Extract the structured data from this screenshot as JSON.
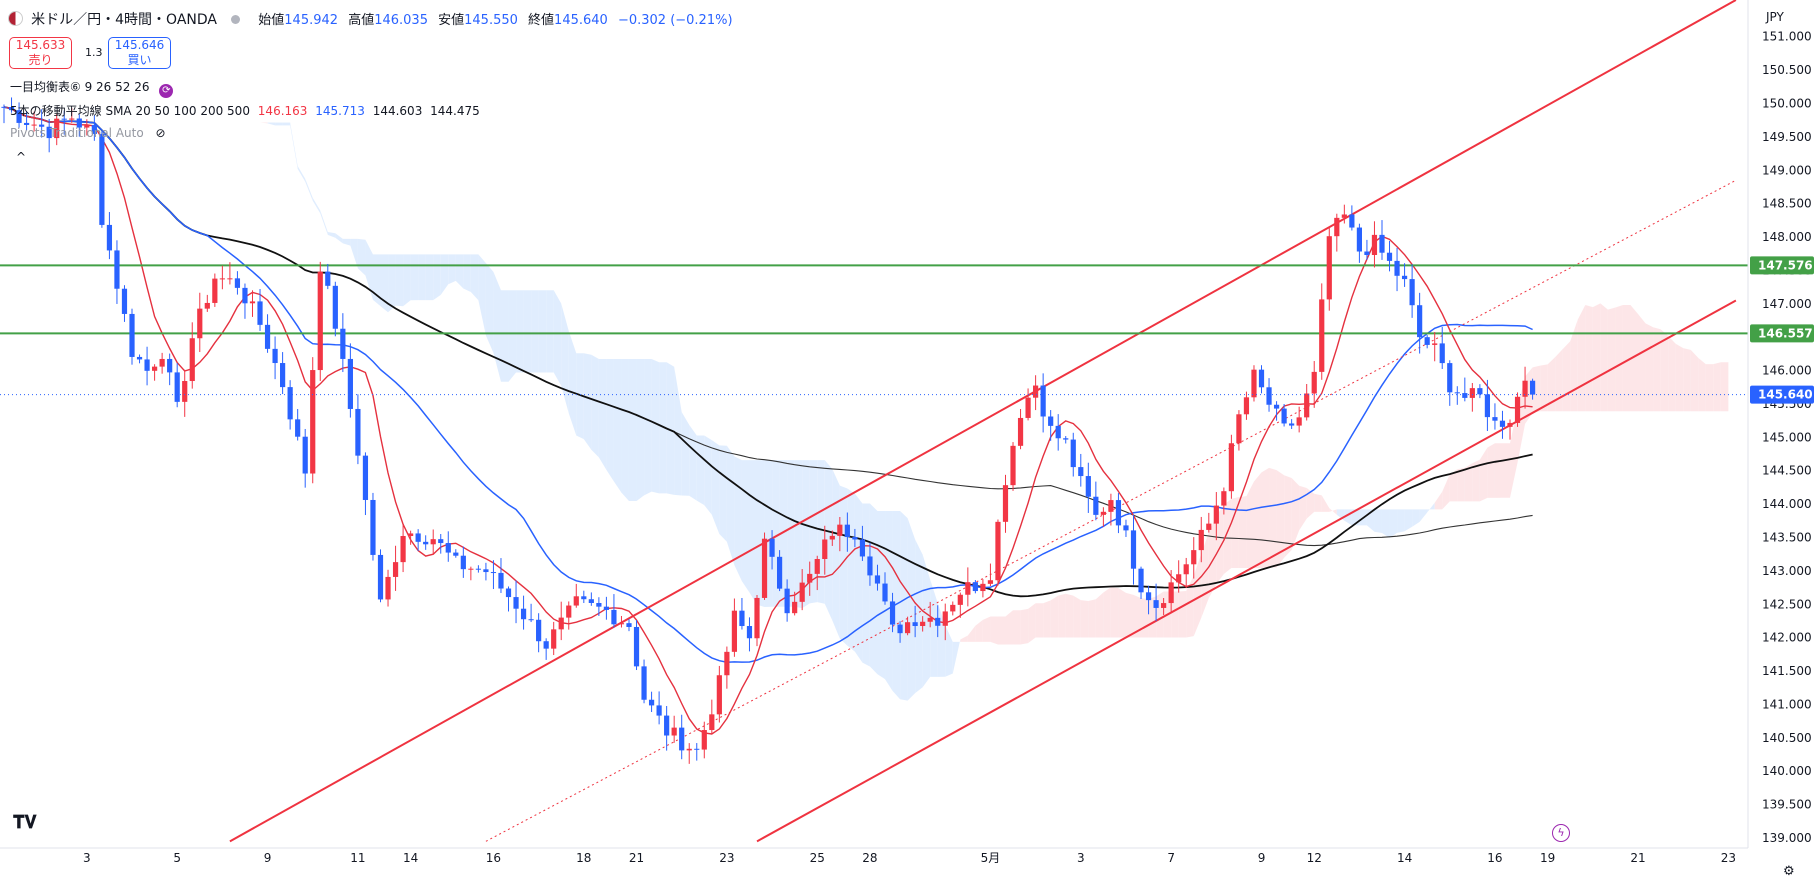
{
  "header": {
    "symbol": "米ドル／円・4時間・OANDA",
    "open_label": "始値",
    "open": "145.942",
    "high_label": "高値",
    "high": "146.035",
    "low_label": "安値",
    "low": "145.550",
    "close_label": "終値",
    "close": "145.640",
    "change": "−0.302 (−0.21%)",
    "currency": "JPY"
  },
  "trade": {
    "sell_price": "145.633",
    "sell_label": "売り",
    "spread": "1.3",
    "buy_price": "145.646",
    "buy_label": "買い"
  },
  "indicators": {
    "ichimoku": "一目均衡表⑥ 9 26 52 26",
    "ma_label": "5本の移動平均線 SMA 20 50 100 200 500",
    "ma_values": [
      "146.163",
      "145.713",
      "144.603",
      "144.475"
    ],
    "pivots": "Pivots Traditional Auto"
  },
  "colors": {
    "bull": "#f23645",
    "bear": "#2962ff",
    "sma20": "#e5313f",
    "sma50": "#2962ff",
    "sma200": "#111111",
    "sma500": "#333333",
    "hline": "#43a047",
    "channel": "#ef3340",
    "cloud_bull": "#fde2e4",
    "cloud_bear": "#dbeafe"
  },
  "chart_data": {
    "type": "candlestick",
    "ylim": [
      138.85,
      151.55
    ],
    "yticks": [
      "151.000",
      "150.500",
      "150.000",
      "149.500",
      "149.000",
      "148.500",
      "148.000",
      "147.500",
      "147.000",
      "146.500",
      "146.000",
      "145.500",
      "145.000",
      "144.500",
      "144.000",
      "143.500",
      "143.000",
      "142.500",
      "142.000",
      "141.500",
      "141.000",
      "140.500",
      "140.000",
      "139.500",
      "139.000"
    ],
    "xticks": [
      {
        "label": "3",
        "i": 11
      },
      {
        "label": "5",
        "i": 23
      },
      {
        "label": "9",
        "i": 35
      },
      {
        "label": "11",
        "i": 47
      },
      {
        "label": "14",
        "i": 54
      },
      {
        "label": "16",
        "i": 65
      },
      {
        "label": "18",
        "i": 77
      },
      {
        "label": "21",
        "i": 84
      },
      {
        "label": "23",
        "i": 96
      },
      {
        "label": "25",
        "i": 108
      },
      {
        "label": "28",
        "i": 115
      },
      {
        "label": "5月",
        "i": 131
      },
      {
        "label": "3",
        "i": 143
      },
      {
        "label": "7",
        "i": 155
      },
      {
        "label": "9",
        "i": 167
      },
      {
        "label": "12",
        "i": 174
      },
      {
        "label": "14",
        "i": 186
      },
      {
        "label": "16",
        "i": 198
      },
      {
        "label": "19",
        "i": 205
      },
      {
        "label": "21",
        "i": 217
      },
      {
        "label": "23",
        "i": 229
      }
    ],
    "last_price": 145.64,
    "levels": [
      {
        "value": 147.576,
        "label": "147.576"
      },
      {
        "value": 146.557,
        "label": "146.557"
      }
    ],
    "last_label": "145.640",
    "channel": {
      "upper": [
        [
          30,
          138.95
        ],
        [
          230,
          151.55
        ]
      ],
      "lower": [
        [
          100,
          138.95
        ],
        [
          230,
          147.05
        ]
      ],
      "mid": [
        [
          64,
          138.95
        ],
        [
          230,
          148.85
        ]
      ]
    },
    "anchors": [
      [
        0,
        149.95
      ],
      [
        3,
        149.75
      ],
      [
        6,
        149.6
      ],
      [
        9,
        149.8
      ],
      [
        12,
        149.5
      ],
      [
        13,
        148.3
      ],
      [
        15,
        147.3
      ],
      [
        17,
        146.3
      ],
      [
        19,
        146.0
      ],
      [
        21,
        146.3
      ],
      [
        23,
        145.4
      ],
      [
        25,
        146.5
      ],
      [
        28,
        147.4
      ],
      [
        31,
        147.3
      ],
      [
        34,
        146.7
      ],
      [
        37,
        145.8
      ],
      [
        40,
        144.5
      ],
      [
        42,
        147.6
      ],
      [
        44,
        146.7
      ],
      [
        47,
        144.8
      ],
      [
        50,
        142.5
      ],
      [
        53,
        143.6
      ],
      [
        57,
        143.5
      ],
      [
        60,
        143.1
      ],
      [
        64,
        143.0
      ],
      [
        68,
        142.5
      ],
      [
        72,
        141.9
      ],
      [
        76,
        142.5
      ],
      [
        80,
        142.4
      ],
      [
        83,
        142.2
      ],
      [
        85,
        141.1
      ],
      [
        88,
        140.6
      ],
      [
        92,
        140.3
      ],
      [
        95,
        141.3
      ],
      [
        97,
        142.3
      ],
      [
        99,
        142.0
      ],
      [
        101,
        143.4
      ],
      [
        104,
        142.5
      ],
      [
        107,
        142.9
      ],
      [
        110,
        143.6
      ],
      [
        113,
        143.6
      ],
      [
        116,
        142.8
      ],
      [
        118,
        142.1
      ],
      [
        121,
        142.3
      ],
      [
        124,
        142.3
      ],
      [
        127,
        142.7
      ],
      [
        129,
        142.8
      ],
      [
        131,
        143.0
      ],
      [
        133,
        144.4
      ],
      [
        135,
        145.4
      ],
      [
        137,
        145.8
      ],
      [
        139,
        145.1
      ],
      [
        141,
        144.9
      ],
      [
        143,
        144.3
      ],
      [
        145,
        143.8
      ],
      [
        147,
        144.1
      ],
      [
        149,
        143.5
      ],
      [
        151,
        142.8
      ],
      [
        153,
        142.5
      ],
      [
        155,
        142.8
      ],
      [
        158,
        143.3
      ],
      [
        160,
        143.7
      ],
      [
        162,
        144.3
      ],
      [
        164,
        145.3
      ],
      [
        166,
        145.9
      ],
      [
        168,
        145.5
      ],
      [
        170,
        145.1
      ],
      [
        172,
        145.3
      ],
      [
        174,
        145.9
      ],
      [
        176,
        148.0
      ],
      [
        178,
        148.3
      ],
      [
        180,
        147.8
      ],
      [
        182,
        147.9
      ],
      [
        184,
        147.6
      ],
      [
        186,
        147.3
      ],
      [
        188,
        146.5
      ],
      [
        190,
        146.3
      ],
      [
        192,
        145.8
      ],
      [
        194,
        145.6
      ],
      [
        196,
        145.6
      ],
      [
        198,
        145.2
      ],
      [
        200,
        145.3
      ],
      [
        202,
        145.9
      ],
      [
        203,
        145.64
      ]
    ]
  }
}
